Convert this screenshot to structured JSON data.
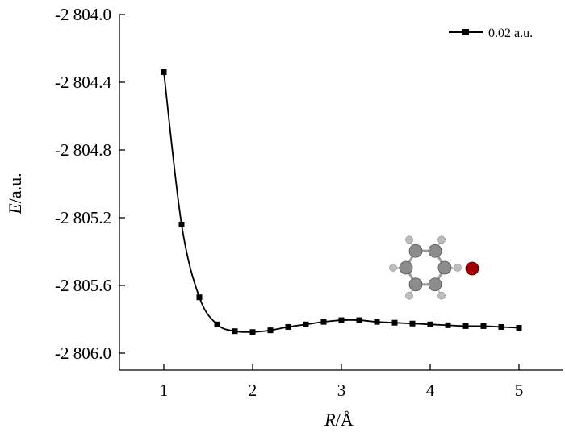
{
  "chart_data": {
    "type": "line",
    "xlabel_var": "R",
    "xlabel_unit": "/Å",
    "ylabel_var": "E",
    "ylabel_unit": "/a.u.",
    "xlim": [
      0.5,
      5.5
    ],
    "ylim": [
      -2806.1,
      -2804.0
    ],
    "x_ticks": [
      1,
      2,
      3,
      4,
      5
    ],
    "x_tick_labels": [
      "1",
      "2",
      "3",
      "4",
      "5"
    ],
    "y_ticks": [
      -2804.0,
      -2804.4,
      -2804.8,
      -2805.2,
      -2805.6,
      -2806.0
    ],
    "y_tick_labels": [
      "-2 804.0",
      "-2 804.4",
      "-2 804.8",
      "-2 805.2",
      "-2 805.6",
      "-2 806.0"
    ],
    "legend_position": "top-right",
    "grid": false,
    "series": [
      {
        "name": "0.02 a.u.",
        "color": "#000000",
        "marker": "square",
        "x": [
          1.0,
          1.2,
          1.4,
          1.6,
          1.8,
          2.0,
          2.2,
          2.4,
          2.6,
          2.8,
          3.0,
          3.2,
          3.4,
          3.6,
          3.8,
          4.0,
          4.2,
          4.4,
          4.6,
          4.8,
          5.0
        ],
        "y": [
          -2804.34,
          -2805.24,
          -2805.67,
          -2805.83,
          -2805.87,
          -2805.875,
          -2805.865,
          -2805.845,
          -2805.83,
          -2805.815,
          -2805.805,
          -2805.805,
          -2805.815,
          -2805.82,
          -2805.825,
          -2805.83,
          -2805.835,
          -2805.84,
          -2805.84,
          -2805.845,
          -2805.85
        ]
      }
    ]
  },
  "inset": {
    "description_icon": "benzene-molecule-with-oxygen-atom-icon",
    "carbon_color": "#8c8c8c",
    "hydrogen_color": "#bdbdbd",
    "atom_color": "#a00000"
  }
}
